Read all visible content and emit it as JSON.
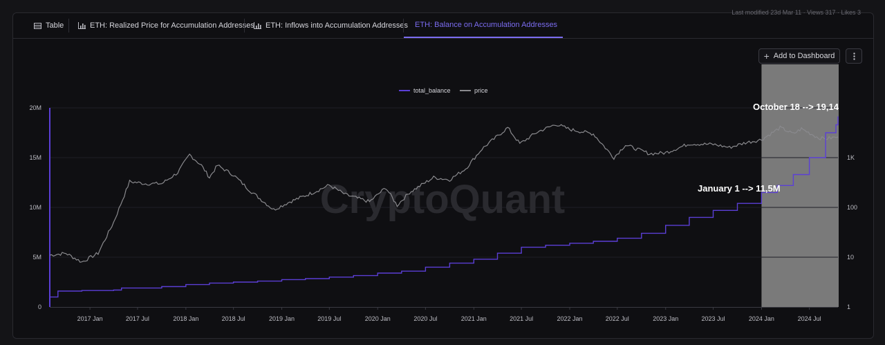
{
  "top_meta": "Last modified 23d   Mar 11 · Views 317 · Likes 3",
  "tabs": [
    {
      "label": "Table",
      "icon": "table-icon"
    },
    {
      "label": "ETH: Realized Price for Accumulation Addresses",
      "icon": "chart-icon"
    },
    {
      "label": "ETH: Inflows into Accumulation Addresses",
      "icon": "chart-icon"
    },
    {
      "label": "ETH: Balance on Accumulation Addresses",
      "icon": "chart-icon",
      "active": true
    }
  ],
  "add_dashboard_label": "Add to Dashboard",
  "more_icon": "more-vertical-icon",
  "watermark": "CryptoQuant",
  "colors": {
    "accent": "#7b6cf0",
    "balance": "#5b3fd6",
    "price": "#8a8a8e",
    "highlight": "#7a7a7a"
  },
  "chart_data": {
    "type": "line",
    "legend": {
      "position": "top-center",
      "entries": [
        "total_balance",
        "price"
      ]
    },
    "grid": true,
    "x_ticks": [
      "2017 Jan",
      "2017 Jul",
      "2018 Jan",
      "2018 Jul",
      "2019 Jan",
      "2019 Jul",
      "2020 Jan",
      "2020 Jul",
      "2021 Jan",
      "2021 Jul",
      "2022 Jan",
      "2022 Jul",
      "2023 Jan",
      "2023 Jul",
      "2024 Jan",
      "2024 Jul"
    ],
    "y_left": {
      "ticks": [
        "0",
        "5M",
        "10M",
        "15M",
        "20M"
      ],
      "range": [
        0,
        20000000
      ]
    },
    "y_right": {
      "ticks": [
        "1",
        "10",
        "100",
        "1K"
      ],
      "scale": "log",
      "range": [
        1,
        10000
      ]
    },
    "x_range": [
      "2016-08-01",
      "2024-10-18"
    ],
    "highlight_range": [
      "2024-01-01",
      "2024-10-18"
    ],
    "annotations": [
      "October 18 --> 19,14",
      "January 1 --> 11,5M"
    ],
    "series": [
      {
        "name": "total_balance",
        "axis": "left",
        "points": [
          [
            "2016-08-01",
            1000000
          ],
          [
            "2016-09-01",
            1600000
          ],
          [
            "2016-12-01",
            1650000
          ],
          [
            "2017-04-01",
            1700000
          ],
          [
            "2017-05-01",
            1900000
          ],
          [
            "2017-10-01",
            2050000
          ],
          [
            "2018-01-01",
            2250000
          ],
          [
            "2018-04-01",
            2400000
          ],
          [
            "2018-07-01",
            2500000
          ],
          [
            "2018-10-01",
            2600000
          ],
          [
            "2019-01-01",
            2750000
          ],
          [
            "2019-04-01",
            2850000
          ],
          [
            "2019-07-01",
            3000000
          ],
          [
            "2019-10-01",
            3150000
          ],
          [
            "2020-01-01",
            3400000
          ],
          [
            "2020-04-01",
            3600000
          ],
          [
            "2020-07-01",
            4000000
          ],
          [
            "2020-10-01",
            4400000
          ],
          [
            "2021-01-01",
            4800000
          ],
          [
            "2021-04-01",
            5400000
          ],
          [
            "2021-07-01",
            6000000
          ],
          [
            "2021-10-01",
            6200000
          ],
          [
            "2022-01-01",
            6400000
          ],
          [
            "2022-04-01",
            6600000
          ],
          [
            "2022-07-01",
            6900000
          ],
          [
            "2022-10-01",
            7400000
          ],
          [
            "2023-01-01",
            8200000
          ],
          [
            "2023-04-01",
            9000000
          ],
          [
            "2023-07-01",
            9700000
          ],
          [
            "2023-10-01",
            10400000
          ],
          [
            "2024-01-01",
            11500000
          ],
          [
            "2024-03-01",
            12200000
          ],
          [
            "2024-05-01",
            13300000
          ],
          [
            "2024-07-01",
            15000000
          ],
          [
            "2024-09-01",
            17500000
          ],
          [
            "2024-10-10",
            18300000
          ],
          [
            "2024-10-18",
            19140000
          ]
        ]
      },
      {
        "name": "price",
        "axis": "right",
        "points": [
          [
            "2016-08-01",
            11
          ],
          [
            "2016-10-01",
            12
          ],
          [
            "2016-12-01",
            8
          ],
          [
            "2017-02-01",
            12
          ],
          [
            "2017-04-01",
            50
          ],
          [
            "2017-06-01",
            330
          ],
          [
            "2017-08-01",
            300
          ],
          [
            "2017-10-01",
            300
          ],
          [
            "2017-12-01",
            500
          ],
          [
            "2018-01-15",
            1150
          ],
          [
            "2018-03-01",
            700
          ],
          [
            "2018-04-01",
            400
          ],
          [
            "2018-05-01",
            700
          ],
          [
            "2018-07-01",
            450
          ],
          [
            "2018-09-01",
            220
          ],
          [
            "2018-12-01",
            90
          ],
          [
            "2019-02-01",
            130
          ],
          [
            "2019-05-01",
            200
          ],
          [
            "2019-07-01",
            280
          ],
          [
            "2019-09-01",
            180
          ],
          [
            "2019-12-01",
            130
          ],
          [
            "2020-02-01",
            250
          ],
          [
            "2020-03-15",
            110
          ],
          [
            "2020-05-01",
            200
          ],
          [
            "2020-08-01",
            400
          ],
          [
            "2020-10-01",
            360
          ],
          [
            "2020-12-01",
            600
          ],
          [
            "2021-02-01",
            1500
          ],
          [
            "2021-05-10",
            4000
          ],
          [
            "2021-06-25",
            1900
          ],
          [
            "2021-09-01",
            3300
          ],
          [
            "2021-11-10",
            4700
          ],
          [
            "2022-01-01",
            3700
          ],
          [
            "2022-04-01",
            3000
          ],
          [
            "2022-06-18",
            1000
          ],
          [
            "2022-08-01",
            1800
          ],
          [
            "2022-11-01",
            1200
          ],
          [
            "2023-01-01",
            1250
          ],
          [
            "2023-04-01",
            1900
          ],
          [
            "2023-07-01",
            1850
          ],
          [
            "2023-09-01",
            1600
          ],
          [
            "2023-11-01",
            2000
          ],
          [
            "2024-01-01",
            2300
          ],
          [
            "2024-03-12",
            4000
          ],
          [
            "2024-05-01",
            3000
          ],
          [
            "2024-06-01",
            3800
          ],
          [
            "2024-08-05",
            2500
          ],
          [
            "2024-09-01",
            2400
          ],
          [
            "2024-10-18",
            2600
          ]
        ]
      }
    ]
  }
}
